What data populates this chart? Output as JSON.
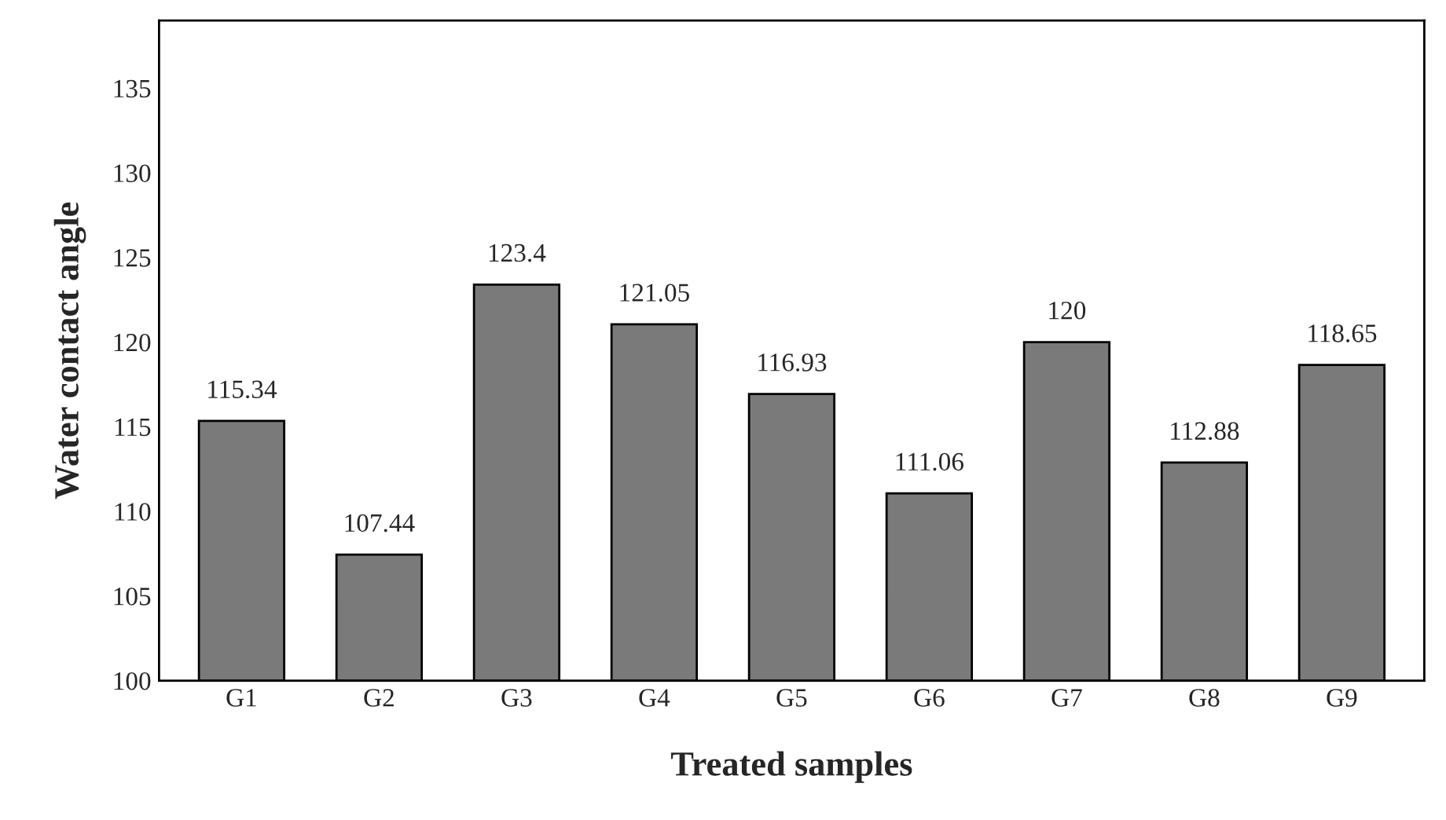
{
  "chart_data": {
    "type": "bar",
    "xlabel": "Treated samples",
    "ylabel": "Water contact angle",
    "categories": [
      "G1",
      "G2",
      "G3",
      "G4",
      "G5",
      "G6",
      "G7",
      "G8",
      "G9"
    ],
    "values": [
      115.34,
      107.44,
      123.4,
      121.05,
      116.93,
      111.06,
      120,
      112.88,
      118.65
    ],
    "color": "#7a7a7a",
    "ylim": [
      100,
      139
    ],
    "yticks": [
      100,
      105,
      110,
      115,
      120,
      125,
      130,
      135
    ],
    "data_labels": true,
    "grid": false,
    "legend": false
  }
}
